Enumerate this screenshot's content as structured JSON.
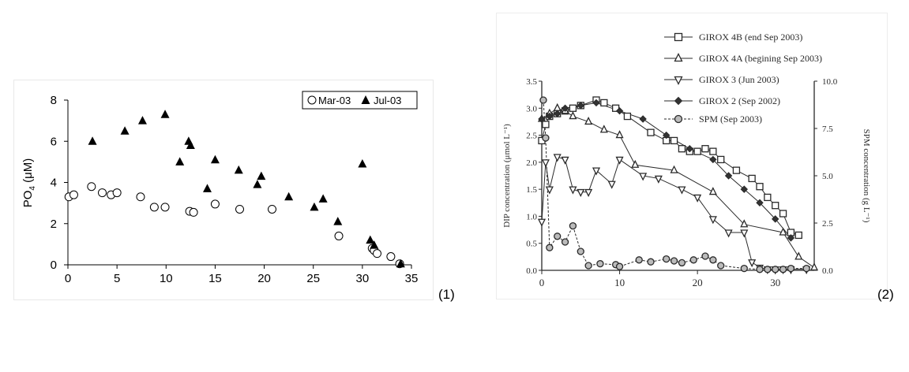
{
  "panel_labels": [
    "(1)",
    "(2)"
  ],
  "chart_data": [
    {
      "type": "scatter",
      "ylabel": "PO4 (μM)",
      "ylabel_main": "PO",
      "ylabel_sub": "4",
      "ylabel_unit": " (μM)",
      "xlim": [
        0,
        35
      ],
      "ylim": [
        0,
        8
      ],
      "xticks": [
        "0",
        "5",
        "10",
        "15",
        "20",
        "25",
        "30",
        "35"
      ],
      "yticks": [
        "0",
        "2",
        "4",
        "6",
        "8"
      ],
      "grid": false,
      "legend_position": "top-right",
      "series": [
        {
          "name": "Mar-03",
          "marker": "open-circle",
          "x": [
            0.1,
            0.6,
            2.4,
            3.5,
            4.4,
            5.0,
            7.4,
            8.8,
            9.9,
            12.4,
            12.8,
            15.0,
            17.5,
            20.8,
            27.6,
            31.0,
            31.2,
            31.5,
            32.9,
            33.8
          ],
          "y": [
            3.3,
            3.4,
            3.8,
            3.5,
            3.4,
            3.5,
            3.3,
            2.8,
            2.8,
            2.6,
            2.55,
            2.95,
            2.7,
            2.7,
            1.4,
            0.8,
            0.7,
            0.55,
            0.4,
            0.05
          ]
        },
        {
          "name": "Jul-03",
          "marker": "filled-triangle",
          "x": [
            2.5,
            5.8,
            7.6,
            9.9,
            11.4,
            12.3,
            12.5,
            14.2,
            15.0,
            17.4,
            19.3,
            19.7,
            22.5,
            25.1,
            26.0,
            27.5,
            30.0,
            30.8,
            31.2,
            33.9
          ],
          "y": [
            6.0,
            6.5,
            7.0,
            7.3,
            5.0,
            6.0,
            5.8,
            3.7,
            5.1,
            4.6,
            3.9,
            4.3,
            3.3,
            2.8,
            3.2,
            2.1,
            4.9,
            1.2,
            0.95,
            0.05
          ]
        }
      ]
    },
    {
      "type": "line",
      "ylabel": "DIP concentration (μmol L⁻¹)",
      "y2label": "SPM concentration (g L⁻¹)",
      "xlim": [
        0,
        35
      ],
      "ylim": [
        0,
        3.5
      ],
      "y2lim": [
        0,
        10
      ],
      "xticks": [
        "0",
        "10",
        "20",
        "30"
      ],
      "yticks": [
        "0.0",
        "0.5",
        "1.0",
        "1.5",
        "2.0",
        "2.5",
        "3.0",
        "3.5"
      ],
      "y2ticks": [
        "0.0",
        "2.5",
        "5.0",
        "7.5",
        "10.0"
      ],
      "grid": false,
      "legend_position": "top",
      "series": [
        {
          "name": "GIROX 4B (end Sep 2003)",
          "marker": "square",
          "x": [
            0,
            0.5,
            1,
            2,
            3,
            4,
            5,
            7,
            8,
            9.5,
            11,
            14,
            16,
            17,
            18,
            19,
            20,
            21,
            22,
            23,
            25,
            27,
            28,
            29,
            30,
            31,
            32,
            33
          ],
          "y": [
            2.4,
            2.7,
            2.85,
            2.9,
            2.95,
            3.0,
            3.05,
            3.15,
            3.1,
            3.0,
            2.85,
            2.55,
            2.4,
            2.4,
            2.25,
            2.2,
            2.2,
            2.25,
            2.2,
            2.05,
            1.85,
            1.7,
            1.55,
            1.35,
            1.2,
            1.05,
            0.7,
            0.65
          ]
        },
        {
          "name": "GIROX 4A (begining Sep 2003)",
          "marker": "triangle-up",
          "x": [
            0,
            1,
            2,
            3,
            4,
            6,
            8,
            10,
            12,
            17,
            22,
            26,
            31,
            33,
            35
          ],
          "y": [
            2.8,
            2.9,
            3.0,
            2.95,
            2.85,
            2.75,
            2.6,
            2.5,
            1.95,
            1.85,
            1.45,
            0.85,
            0.7,
            0.25,
            0.05
          ]
        },
        {
          "name": "GIROX 3 (Jun 2003)",
          "marker": "triangle-down",
          "x": [
            0,
            0.5,
            1,
            2,
            3,
            4,
            5,
            6,
            7,
            9,
            10,
            13,
            15,
            18,
            20,
            22,
            24,
            26,
            27,
            28,
            29,
            30,
            31,
            32,
            34
          ],
          "y": [
            0.9,
            2.0,
            1.5,
            2.1,
            2.05,
            1.5,
            1.45,
            1.45,
            1.85,
            1.6,
            2.05,
            1.75,
            1.7,
            1.5,
            1.35,
            0.95,
            0.7,
            0.7,
            0.15,
            0.05,
            0.02,
            0.02,
            0.02,
            0.02,
            0.02
          ]
        },
        {
          "name": "GIROX 2 (Sep 2002)",
          "marker": "diamond",
          "x": [
            0,
            1,
            2,
            3,
            5,
            7,
            10,
            13,
            16,
            19,
            22,
            24,
            26,
            28,
            30,
            32
          ],
          "y": [
            2.8,
            2.85,
            2.9,
            3.0,
            3.05,
            3.1,
            2.95,
            2.8,
            2.5,
            2.25,
            2.05,
            1.75,
            1.5,
            1.25,
            0.95,
            0.6
          ]
        },
        {
          "name": "SPM (Sep 2003)",
          "marker": "open-circle",
          "axis": "right",
          "x": [
            0.2,
            0.5,
            1,
            2,
            3,
            4,
            5,
            6,
            7.5,
            9.5,
            10,
            12.5,
            14,
            16,
            17,
            18,
            19.5,
            21,
            22,
            23,
            26,
            28,
            29,
            30,
            31,
            32,
            34
          ],
          "y": [
            9.0,
            7.0,
            1.2,
            1.8,
            1.5,
            2.35,
            1.0,
            0.25,
            0.35,
            0.3,
            0.2,
            0.55,
            0.45,
            0.6,
            0.5,
            0.4,
            0.55,
            0.75,
            0.55,
            0.25,
            0.1,
            0.05,
            0.05,
            0.05,
            0.05,
            0.1,
            0.1
          ]
        }
      ]
    }
  ]
}
